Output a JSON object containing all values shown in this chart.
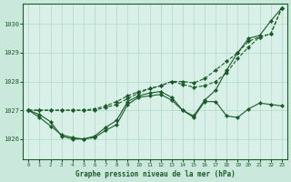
{
  "title": "Graphe pression niveau de la mer (hPa)",
  "background_color": "#cbe8dc",
  "plot_bg_color": "#d8f0e8",
  "grid_color": "#b0d8c8",
  "line_color": "#1a5c28",
  "marker_color": "#1a5c28",
  "xlim": [
    -0.5,
    23.5
  ],
  "ylim": [
    1025.3,
    1030.7
  ],
  "yticks": [
    1026,
    1027,
    1028,
    1029,
    1030
  ],
  "xticks": [
    0,
    1,
    2,
    3,
    4,
    5,
    6,
    7,
    8,
    9,
    10,
    11,
    12,
    13,
    14,
    15,
    16,
    17,
    18,
    19,
    20,
    21,
    22,
    23
  ],
  "series": [
    [
      1027.0,
      1026.85,
      1026.6,
      1026.1,
      1026.0,
      1026.0,
      1026.05,
      1026.3,
      1026.5,
      1027.2,
      1027.45,
      1027.5,
      1027.55,
      1027.35,
      1027.0,
      1026.75,
      1027.3,
      1027.3,
      1026.8,
      1026.75,
      1027.05,
      1027.25,
      1027.2,
      1027.15
    ],
    [
      1027.0,
      1026.75,
      1026.45,
      1026.15,
      1026.05,
      1026.0,
      1026.1,
      1026.4,
      1026.65,
      1027.3,
      1027.5,
      1027.6,
      1027.65,
      1027.45,
      1027.0,
      1026.8,
      1027.35,
      1027.7,
      1028.4,
      1029.0,
      1029.5,
      1029.6,
      1030.1,
      1030.55
    ],
    [
      1027.0,
      1027.0,
      1027.0,
      1027.0,
      1027.0,
      1027.0,
      1027.0,
      1027.1,
      1027.2,
      1027.4,
      1027.6,
      1027.75,
      1027.85,
      1028.0,
      1027.9,
      1027.8,
      1027.85,
      1028.0,
      1028.3,
      1028.8,
      1029.2,
      1029.55,
      1029.65,
      1030.55
    ],
    [
      1027.0,
      1027.0,
      1027.0,
      1027.0,
      1027.0,
      1027.0,
      1027.05,
      1027.15,
      1027.3,
      1027.5,
      1027.65,
      1027.75,
      1027.85,
      1028.0,
      1028.0,
      1027.95,
      1028.1,
      1028.4,
      1028.7,
      1029.0,
      1029.4,
      1029.55,
      1029.65,
      1030.55
    ]
  ]
}
